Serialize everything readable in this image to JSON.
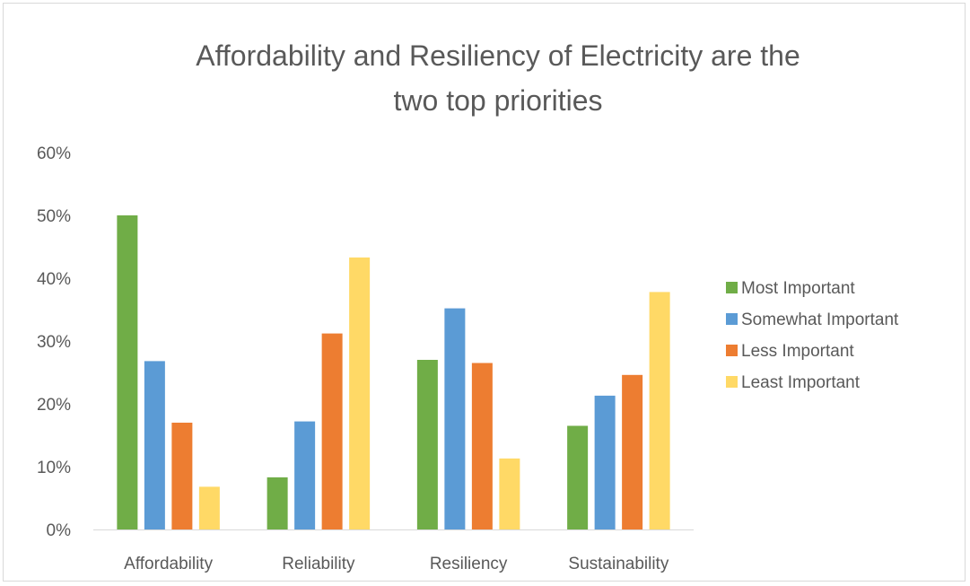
{
  "chart_data": {
    "type": "bar",
    "title_lines": [
      "Affordability and Resiliency of Electricity are the",
      "two top priorities"
    ],
    "title": "Affordability and Resiliency of Electricity are the two top priorities",
    "categories": [
      "Affordability",
      "Reliability",
      "Resiliency",
      "Sustainability"
    ],
    "series": [
      {
        "name": "Most Important",
        "color": "#70ad47",
        "values": [
          0.5,
          0.083,
          0.27,
          0.165
        ]
      },
      {
        "name": "Somewhat Important",
        "color": "#5b9bd5",
        "values": [
          0.268,
          0.172,
          0.352,
          0.213
        ]
      },
      {
        "name": "Less Important",
        "color": "#ed7d31",
        "values": [
          0.17,
          0.312,
          0.265,
          0.246
        ]
      },
      {
        "name": "Least Important",
        "color": "#ffd966",
        "values": [
          0.068,
          0.433,
          0.113,
          0.378
        ]
      }
    ],
    "ylim": [
      0,
      0.6
    ],
    "yticks": [
      0,
      0.1,
      0.2,
      0.3,
      0.4,
      0.5,
      0.6
    ],
    "ytick_labels": [
      "0%",
      "10%",
      "20%",
      "30%",
      "40%",
      "50%",
      "60%"
    ],
    "xlabel": "",
    "ylabel": "",
    "grid": false,
    "legend_position": "right"
  }
}
